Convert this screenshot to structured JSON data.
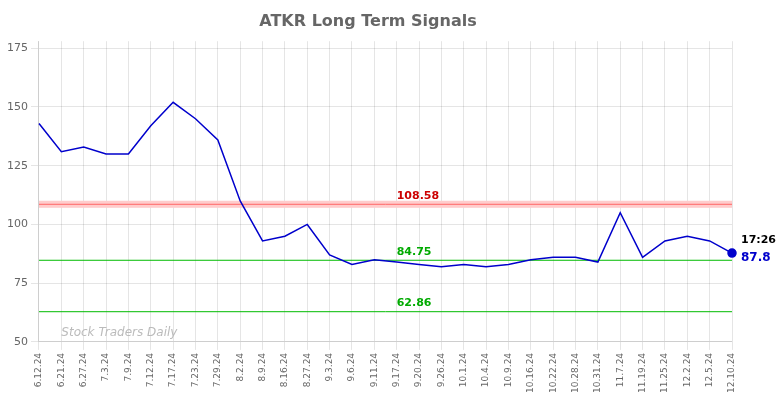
{
  "chart_data": {
    "type": "line",
    "title": "ATKR Long Term Signals",
    "categories": [
      "6.12.24",
      "6.21.24",
      "6.27.24",
      "7.3.24",
      "7.9.24",
      "7.12.24",
      "7.17.24",
      "7.23.24",
      "7.29.24",
      "8.2.24",
      "8.9.24",
      "8.16.24",
      "8.27.24",
      "9.3.24",
      "9.6.24",
      "9.11.24",
      "9.17.24",
      "9.20.24",
      "9.26.24",
      "10.1.24",
      "10.4.24",
      "10.9.24",
      "10.16.24",
      "10.22.24",
      "10.28.24",
      "10.31.24",
      "11.7.24",
      "11.19.24",
      "11.25.24",
      "12.2.24",
      "12.5.24",
      "12.10.24"
    ],
    "values": [
      143,
      131,
      133,
      130,
      130,
      142,
      152,
      145,
      136,
      110,
      93,
      95,
      100,
      87,
      83,
      85,
      84,
      83,
      82,
      83,
      82,
      83,
      85,
      86,
      86,
      84,
      105,
      86,
      93,
      95,
      93,
      87.8
    ],
    "color": "#0000cc",
    "ylim": [
      50,
      178
    ],
    "yticks": [
      50,
      75,
      100,
      125,
      150,
      175
    ],
    "grid": true,
    "band": {
      "from": 107.08,
      "to": 110.08,
      "color": "#ffcccc"
    },
    "hlines": [
      {
        "value": 108.58,
        "label": "108.58",
        "color": "#ff6666",
        "label_color": "#cc0000"
      },
      {
        "value": 84.75,
        "label": "84.75",
        "color": "#00bb00",
        "label_color": "#00aa00"
      },
      {
        "value": 62.86,
        "label": "62.86",
        "color": "#00bb00",
        "label_color": "#00aa00"
      }
    ],
    "annotations": [
      {
        "text": "17:26",
        "color": "#000000"
      },
      {
        "text": "87.8",
        "color": "#0000cc"
      }
    ],
    "watermark": {
      "text": "Stock Traders Daily",
      "color": "#bbbbbb"
    }
  }
}
